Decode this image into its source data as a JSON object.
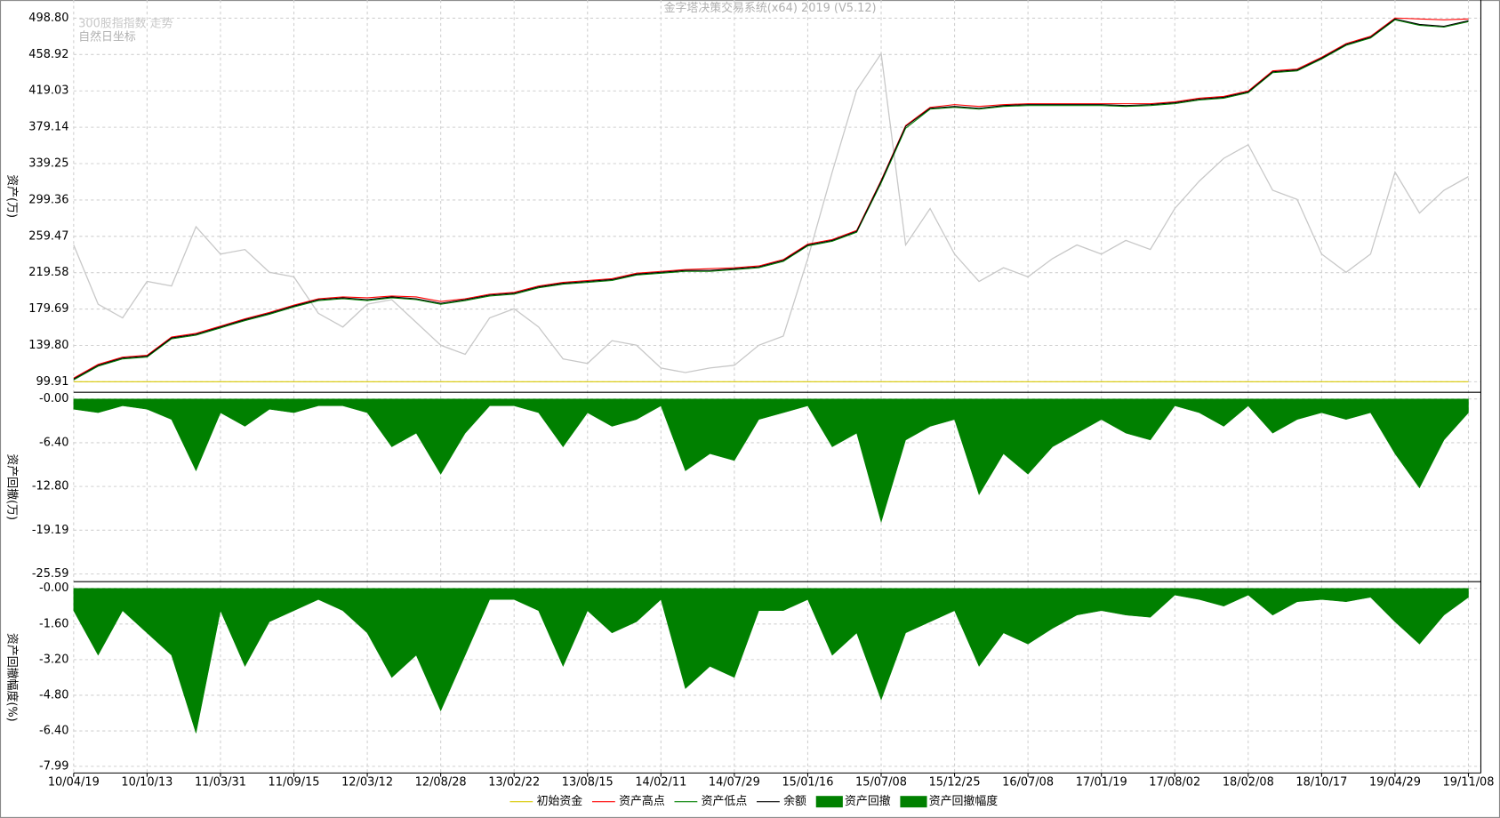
{
  "chart_data": {
    "type": "line",
    "title": "金字塔决策交易系统(x64) 2019 (V5.12)",
    "axis_note": "自然日坐标",
    "x": [
      "10/04/19",
      null,
      null,
      "10/10/13",
      null,
      null,
      "11/03/31",
      null,
      null,
      "11/09/15",
      null,
      null,
      "12/03/12",
      null,
      null,
      "12/08/28",
      null,
      null,
      "13/02/22",
      null,
      null,
      "13/08/15",
      null,
      null,
      "14/02/11",
      null,
      null,
      "14/07/29",
      null,
      null,
      "15/01/16",
      null,
      null,
      "15/07/08",
      null,
      null,
      "15/12/25",
      null,
      null,
      "16/07/08",
      null,
      null,
      "17/01/19",
      null,
      null,
      "17/08/02",
      null,
      null,
      "18/02/08",
      null,
      null,
      "18/10/17",
      null,
      null,
      "19/04/29",
      null,
      null,
      "19/11/08"
    ],
    "grid": true,
    "panels": [
      {
        "type": "line",
        "ylabel": "资产(万)",
        "ylim": [
          88.4,
          518.7
        ],
        "yticks": [
          99.91,
          {
            "value": 139.8,
            "label": "139.80"
          },
          179.69,
          219.58,
          259.47,
          299.36,
          339.25,
          379.14,
          419.03,
          458.92,
          {
            "value": 498.8,
            "label": "498.80"
          }
        ],
        "index": {
          "name": "300股指指数 走势",
          "color": "#c8c8c8",
          "values": [
            250,
            185,
            170,
            210,
            205,
            270,
            240,
            245,
            220,
            215,
            175,
            160,
            185,
            190,
            165,
            140,
            130,
            170,
            180,
            160,
            125,
            120,
            145,
            140,
            115,
            110,
            115,
            118,
            140,
            150,
            235,
            330,
            420,
            460,
            250,
            290,
            240,
            210,
            225,
            215,
            235,
            250,
            240,
            255,
            245,
            290,
            320,
            345,
            360,
            310,
            300,
            240,
            220,
            240,
            330,
            285,
            310,
            325
          ]
        },
        "series": [
          {
            "name": "初始资金",
            "color": "#d8c800",
            "values": [
              100,
              100,
              100,
              100,
              100,
              100,
              100,
              100,
              100,
              100,
              100,
              100,
              100,
              100,
              100,
              100,
              100,
              100,
              100,
              100,
              100,
              100,
              100,
              100,
              100,
              100,
              100,
              100,
              100,
              100,
              100,
              100,
              100,
              100,
              100,
              100,
              100,
              100,
              100,
              100,
              100,
              100,
              100,
              100,
              100,
              100,
              100,
              100,
              100,
              100,
              100,
              100,
              100,
              100,
              100,
              100,
              100,
              100
            ]
          },
          {
            "name": "资产高点",
            "color": "#ff0000",
            "values": [
              104,
              119,
              127,
              129,
              149,
              153,
              161,
              169,
              176,
              184,
              191,
              193,
              192,
              194,
              193,
              188,
              191,
              196,
              198,
              205,
              209,
              211,
              213,
              219,
              221,
              223,
              224,
              225,
              227,
              234,
              251,
              256,
              266,
              321,
              381,
              401,
              404,
              402,
              404,
              405,
              405,
              405,
              405,
              405,
              405,
              407,
              411,
              413,
              419,
              441,
              443,
              456,
              471,
              479,
              499,
              498,
              497,
              498
            ]
          },
          {
            "name": "资产低点",
            "color": "#008000",
            "values": [
              102,
              117,
              125,
              127,
              147,
              151,
              159,
              167,
              174,
              182,
              189,
              191,
              189,
              192,
              190,
              185,
              189,
              194,
              196,
              203,
              207,
              209,
              211,
              217,
              219,
              221,
              221,
              223,
              225,
              232,
              249,
              254,
              264,
              318,
              378,
              399,
              401,
              399,
              402,
              403,
              403,
              403,
              403,
              402,
              403,
              405,
              409,
              411,
              417,
              439,
              441,
              454,
              469,
              477,
              497,
              491,
              489,
              495
            ]
          },
          {
            "name": "余额",
            "color": "#000000",
            "values": [
              103,
              118,
              126,
              128,
              148,
              152,
              160,
              168,
              175,
              183,
              190,
              192,
              190,
              193,
              191,
              186,
              190,
              195,
              197,
              204,
              208,
              210,
              212,
              218,
              220,
              222,
              222,
              224,
              226,
              233,
              250,
              255,
              265,
              320,
              380,
              400,
              402,
              400,
              403,
              404,
              404,
              404,
              404,
              403,
              404,
              406,
              410,
              412,
              418,
              440,
              442,
              455,
              470,
              478,
              498,
              492,
              490,
              496
            ]
          }
        ]
      },
      {
        "type": "area",
        "ylabel": "资产回撤(万)",
        "ylim": [
          -26.72,
          0.98
        ],
        "yticks": [
          {
            "value": 0,
            "label": "-0.00"
          },
          {
            "value": -6.4,
            "label": "-6.40"
          },
          {
            "value": -12.8,
            "label": "-12.80"
          },
          -19.19,
          -25.59
        ],
        "series": [
          {
            "name": "资产回撤",
            "color": "#008000",
            "values": [
              -1.5,
              -2,
              -1,
              -1.5,
              -3,
              -10.5,
              -2,
              -4,
              -1.5,
              -2,
              -1,
              -1,
              -2,
              -7,
              -5,
              -11,
              -5,
              -1,
              -1,
              -2,
              -7,
              -2,
              -4,
              -3,
              -1,
              -10.5,
              -8,
              -9,
              -3,
              -2,
              -1,
              -7,
              -5,
              -18,
              -6,
              -4,
              -3,
              -14,
              -8,
              -11,
              -7,
              -5,
              -3,
              -5,
              -6,
              -1,
              -2,
              -4,
              -1,
              -5,
              -3,
              -2,
              -3,
              -2,
              -8,
              -13,
              -6,
              -2
            ]
          }
        ]
      },
      {
        "type": "area",
        "ylabel": "资产回撤幅度(%)",
        "ylim": [
          -8.29,
          0.3
        ],
        "yticks": [
          {
            "value": 0,
            "label": "-0.00"
          },
          {
            "value": -1.6,
            "label": "-1.60"
          },
          {
            "value": -3.2,
            "label": "-3.20"
          },
          {
            "value": -4.8,
            "label": "-4.80"
          },
          {
            "value": -6.4,
            "label": "-6.40"
          },
          -7.99
        ],
        "series": [
          {
            "name": "资产回撤幅度",
            "color": "#008000",
            "values": [
              -1,
              -3,
              -1,
              -2,
              -3,
              -6.5,
              -1,
              -3.5,
              -1.5,
              -1,
              -0.5,
              -1,
              -2,
              -4,
              -3,
              -5.5,
              -3,
              -0.5,
              -0.5,
              -1,
              -3.5,
              -1,
              -2,
              -1.5,
              -0.5,
              -4.5,
              -3.5,
              -4,
              -1,
              -1,
              -0.5,
              -3,
              -2,
              -5,
              -2,
              -1.5,
              -1,
              -3.5,
              -2,
              -2.5,
              -1.8,
              -1.2,
              -1,
              -1.2,
              -1.3,
              -0.3,
              -0.5,
              -0.8,
              -0.3,
              -1.2,
              -0.6,
              -0.5,
              -0.6,
              -0.4,
              -1.5,
              -2.5,
              -1.2,
              -0.4
            ]
          }
        ]
      }
    ]
  }
}
